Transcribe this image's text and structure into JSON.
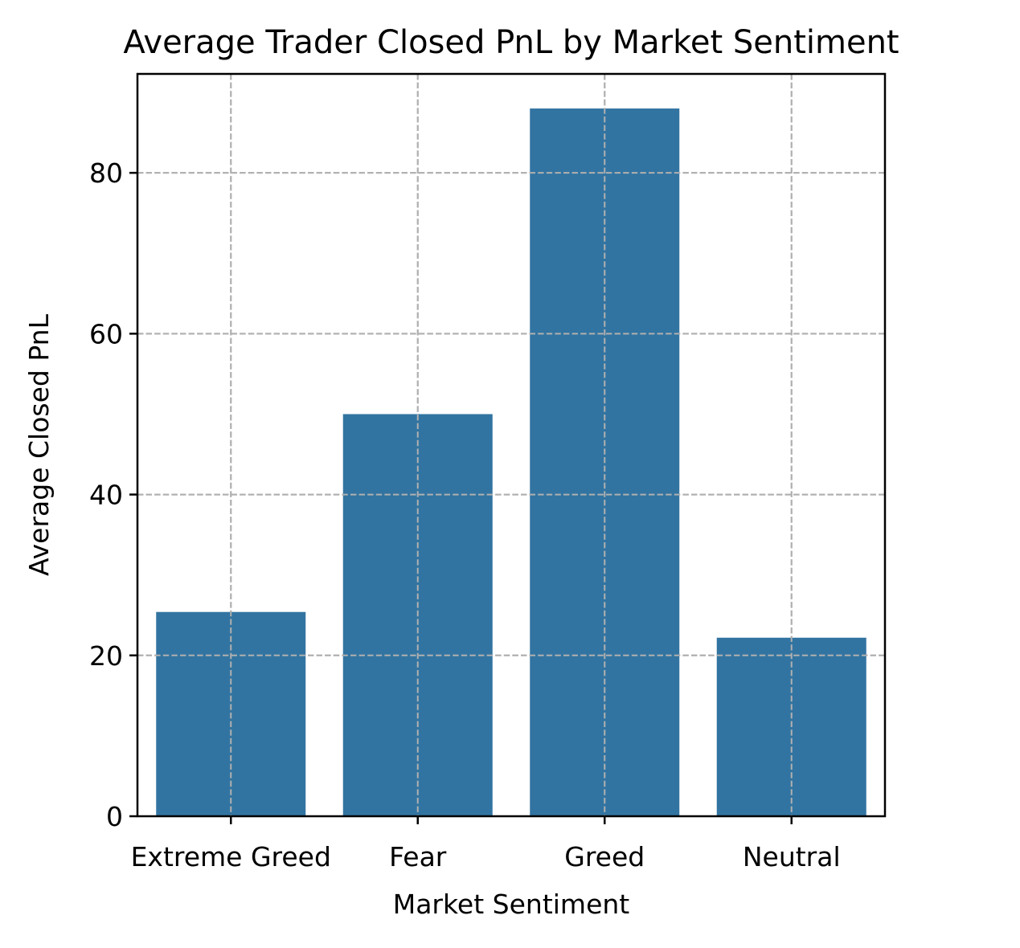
{
  "chart_data": {
    "type": "bar",
    "title": "Average Trader Closed PnL by Market Sentiment",
    "xlabel": "Market Sentiment",
    "ylabel": "Average Closed PnL",
    "categories": [
      "Extreme Greed",
      "Fear",
      "Greed",
      "Neutral"
    ],
    "values": [
      25.4,
      50.0,
      88.0,
      22.2
    ],
    "ylim": [
      0,
      92.3
    ],
    "yticks": [
      0,
      20,
      40,
      60,
      80
    ],
    "ytick_labels": [
      "0",
      "20",
      "40",
      "60",
      "80"
    ],
    "grid": true,
    "bar_color": "#3274a1"
  }
}
